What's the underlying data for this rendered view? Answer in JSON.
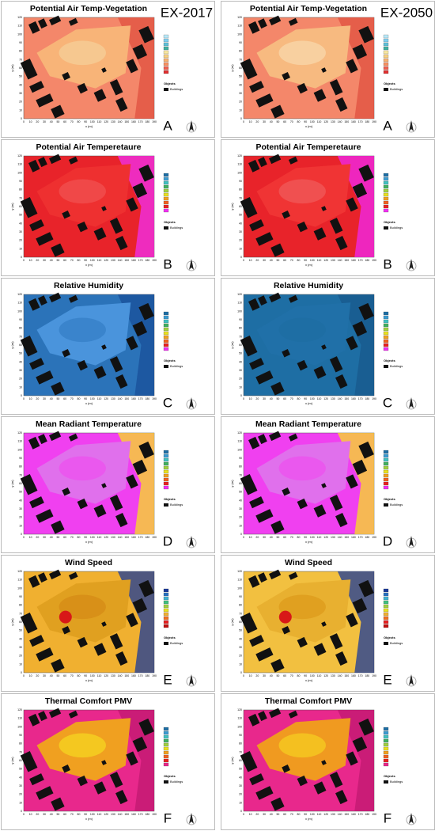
{
  "columns": [
    "EX-2017",
    "EX-2050"
  ],
  "rows": [
    {
      "title": "Potential Air Temp-Vegetation",
      "letter": "A"
    },
    {
      "title": "Potential Air Temperetaure",
      "letter": "B"
    },
    {
      "title": "Relative Humidity",
      "letter": "C"
    },
    {
      "title": "Mean Radiant Temperature",
      "letter": "D"
    },
    {
      "title": "Wind Speed",
      "letter": "E"
    },
    {
      "title": "Thermal Comfort PMV",
      "letter": "F"
    }
  ],
  "axis": {
    "x_label": "x (m)",
    "y_label": "y (m)",
    "x_ticks": [
      0,
      10,
      20,
      30,
      40,
      50,
      60,
      70,
      80,
      90,
      100,
      110,
      120,
      130,
      140,
      150,
      160,
      170,
      180,
      190
    ],
    "y_ticks": [
      0,
      10,
      20,
      30,
      40,
      50,
      60,
      70,
      80,
      90,
      100,
      110,
      120
    ]
  },
  "legend": {
    "objects": "Objects",
    "buildings": "Buildings"
  }
}
